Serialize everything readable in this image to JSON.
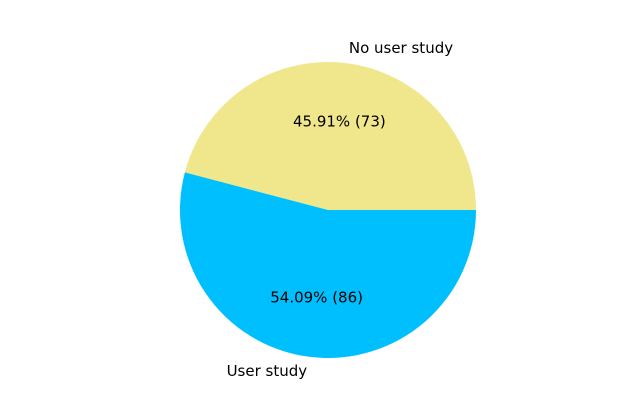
{
  "chart_data": {
    "type": "pie",
    "title": "",
    "slices": [
      {
        "label": "No user study",
        "value": 73,
        "percent_label": "45.91%  (73)",
        "color": "#f0e68c"
      },
      {
        "label": "User study",
        "value": 86,
        "percent_label": "54.09%  (86)",
        "color": "#00bfff"
      }
    ],
    "start_angle_deg": 0,
    "direction": "counterclockwise",
    "legend": "none"
  }
}
